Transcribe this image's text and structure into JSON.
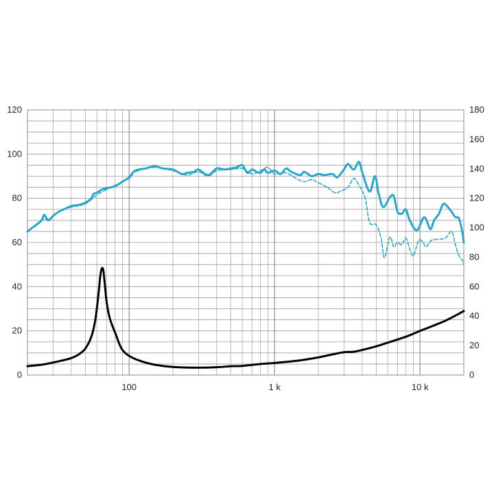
{
  "chart_data": {
    "type": "line",
    "x_scale": "log",
    "x_range": [
      20,
      20000
    ],
    "y_left_range": [
      0,
      120
    ],
    "y_right_range": [
      0,
      180
    ],
    "grid": true,
    "legend": "none",
    "x_tick_labels": [
      {
        "value": 100,
        "label": "100"
      },
      {
        "value": 1000,
        "label": "1 k"
      },
      {
        "value": 10000,
        "label": "10 k"
      }
    ],
    "y_left_ticks": [
      0,
      20,
      40,
      60,
      80,
      100,
      120
    ],
    "y_right_ticks": [
      0,
      20,
      40,
      60,
      80,
      100,
      120,
      140,
      160,
      180
    ],
    "series": [
      {
        "key": "spl_on_axis",
        "axis": "left",
        "color": "#2aa5c8",
        "dash": "none",
        "width": 3,
        "points": [
          [
            20,
            65
          ],
          [
            23,
            68
          ],
          [
            25,
            70
          ],
          [
            26,
            72.5
          ],
          [
            27,
            71
          ],
          [
            28,
            70
          ],
          [
            30,
            72
          ],
          [
            33,
            74
          ],
          [
            37,
            75.5
          ],
          [
            40,
            76.5
          ],
          [
            45,
            77
          ],
          [
            50,
            78
          ],
          [
            55,
            80
          ],
          [
            57,
            82
          ],
          [
            60,
            82.5
          ],
          [
            65,
            84
          ],
          [
            70,
            84.5
          ],
          [
            80,
            85.5
          ],
          [
            90,
            87.5
          ],
          [
            100,
            89.5
          ],
          [
            110,
            92.5
          ],
          [
            130,
            93.5
          ],
          [
            150,
            94.5
          ],
          [
            170,
            93.5
          ],
          [
            200,
            93
          ],
          [
            230,
            91
          ],
          [
            250,
            91.5
          ],
          [
            280,
            92
          ],
          [
            300,
            93
          ],
          [
            350,
            90.5
          ],
          [
            400,
            93.5
          ],
          [
            450,
            93
          ],
          [
            500,
            93.5
          ],
          [
            550,
            94
          ],
          [
            600,
            95
          ],
          [
            650,
            91.5
          ],
          [
            700,
            93
          ],
          [
            750,
            92
          ],
          [
            800,
            91.5
          ],
          [
            850,
            93
          ],
          [
            900,
            91.5
          ],
          [
            1000,
            92.5
          ],
          [
            1100,
            91
          ],
          [
            1200,
            93.5
          ],
          [
            1300,
            92
          ],
          [
            1500,
            90.5
          ],
          [
            1600,
            92
          ],
          [
            1800,
            90
          ],
          [
            2000,
            91
          ],
          [
            2200,
            90.5
          ],
          [
            2500,
            91
          ],
          [
            2700,
            89.5
          ],
          [
            3000,
            93
          ],
          [
            3200,
            95.5
          ],
          [
            3500,
            93
          ],
          [
            3800,
            96.5
          ],
          [
            4000,
            92
          ],
          [
            4500,
            83
          ],
          [
            4900,
            90
          ],
          [
            5200,
            82
          ],
          [
            5600,
            76
          ],
          [
            6200,
            80.5
          ],
          [
            6600,
            81
          ],
          [
            7000,
            74
          ],
          [
            7500,
            73
          ],
          [
            8000,
            75
          ],
          [
            8500,
            70
          ],
          [
            9500,
            65.5
          ],
          [
            10500,
            71
          ],
          [
            11000,
            70.5
          ],
          [
            11800,
            66
          ],
          [
            12500,
            70
          ],
          [
            13500,
            73
          ],
          [
            14500,
            77.5
          ],
          [
            16000,
            75
          ],
          [
            17500,
            71.5
          ],
          [
            18500,
            71
          ],
          [
            19500,
            65
          ],
          [
            20000,
            60
          ]
        ]
      },
      {
        "key": "spl_off_axis",
        "axis": "left",
        "color": "#2aa5c8",
        "dash": "5,3",
        "width": 1.6,
        "points": [
          [
            20,
            65
          ],
          [
            25,
            70
          ],
          [
            28,
            70.5
          ],
          [
            33,
            74
          ],
          [
            40,
            76
          ],
          [
            50,
            77.5
          ],
          [
            60,
            81.5
          ],
          [
            70,
            84
          ],
          [
            100,
            89
          ],
          [
            110,
            92
          ],
          [
            150,
            94
          ],
          [
            200,
            92.5
          ],
          [
            250,
            90.5
          ],
          [
            300,
            92
          ],
          [
            350,
            90
          ],
          [
            400,
            92.5
          ],
          [
            500,
            93
          ],
          [
            600,
            93.5
          ],
          [
            700,
            91
          ],
          [
            800,
            92.5
          ],
          [
            900,
            94
          ],
          [
            1000,
            91
          ],
          [
            1200,
            91.5
          ],
          [
            1400,
            89
          ],
          [
            1600,
            87.5
          ],
          [
            1800,
            88.5
          ],
          [
            2000,
            87
          ],
          [
            2300,
            85
          ],
          [
            2600,
            82.5
          ],
          [
            2800,
            83
          ],
          [
            3200,
            85
          ],
          [
            3500,
            89
          ],
          [
            3800,
            86
          ],
          [
            4200,
            80
          ],
          [
            4500,
            69
          ],
          [
            5000,
            68
          ],
          [
            5400,
            62
          ],
          [
            5700,
            53
          ],
          [
            6200,
            62.5
          ],
          [
            6600,
            58
          ],
          [
            7000,
            60
          ],
          [
            7500,
            59
          ],
          [
            8000,
            62
          ],
          [
            8500,
            57
          ],
          [
            9000,
            54
          ],
          [
            9800,
            61
          ],
          [
            10500,
            60
          ],
          [
            11000,
            58
          ],
          [
            12000,
            61
          ],
          [
            13500,
            61.5
          ],
          [
            15000,
            62
          ],
          [
            16500,
            65
          ],
          [
            17500,
            59
          ],
          [
            18500,
            54
          ],
          [
            19500,
            52
          ],
          [
            20000,
            50
          ]
        ]
      },
      {
        "key": "impedance",
        "axis": "right",
        "color": "#000000",
        "dash": "none",
        "width": 3,
        "points": [
          [
            20,
            6
          ],
          [
            25,
            7
          ],
          [
            30,
            8.5
          ],
          [
            35,
            10
          ],
          [
            40,
            11.5
          ],
          [
            45,
            14
          ],
          [
            50,
            18
          ],
          [
            55,
            26
          ],
          [
            58,
            35
          ],
          [
            60,
            45
          ],
          [
            62,
            58
          ],
          [
            63.5,
            68
          ],
          [
            65,
            72.5
          ],
          [
            66.5,
            71
          ],
          [
            68,
            62
          ],
          [
            70,
            50
          ],
          [
            73,
            40
          ],
          [
            77,
            33
          ],
          [
            80,
            29
          ],
          [
            85,
            22
          ],
          [
            90,
            17
          ],
          [
            100,
            13
          ],
          [
            120,
            9.5
          ],
          [
            150,
            7
          ],
          [
            200,
            5.5
          ],
          [
            300,
            5
          ],
          [
            400,
            5.3
          ],
          [
            500,
            6
          ],
          [
            600,
            6.2
          ],
          [
            800,
            7.5
          ],
          [
            1000,
            8.2
          ],
          [
            1500,
            10
          ],
          [
            2000,
            12
          ],
          [
            2500,
            14
          ],
          [
            3000,
            15.5
          ],
          [
            3500,
            15.8
          ],
          [
            4000,
            17
          ],
          [
            5000,
            19.5
          ],
          [
            6000,
            22
          ],
          [
            8000,
            26
          ],
          [
            10000,
            30
          ],
          [
            12000,
            33
          ],
          [
            15000,
            37
          ],
          [
            18000,
            41
          ],
          [
            20000,
            43.5
          ]
        ]
      }
    ]
  }
}
